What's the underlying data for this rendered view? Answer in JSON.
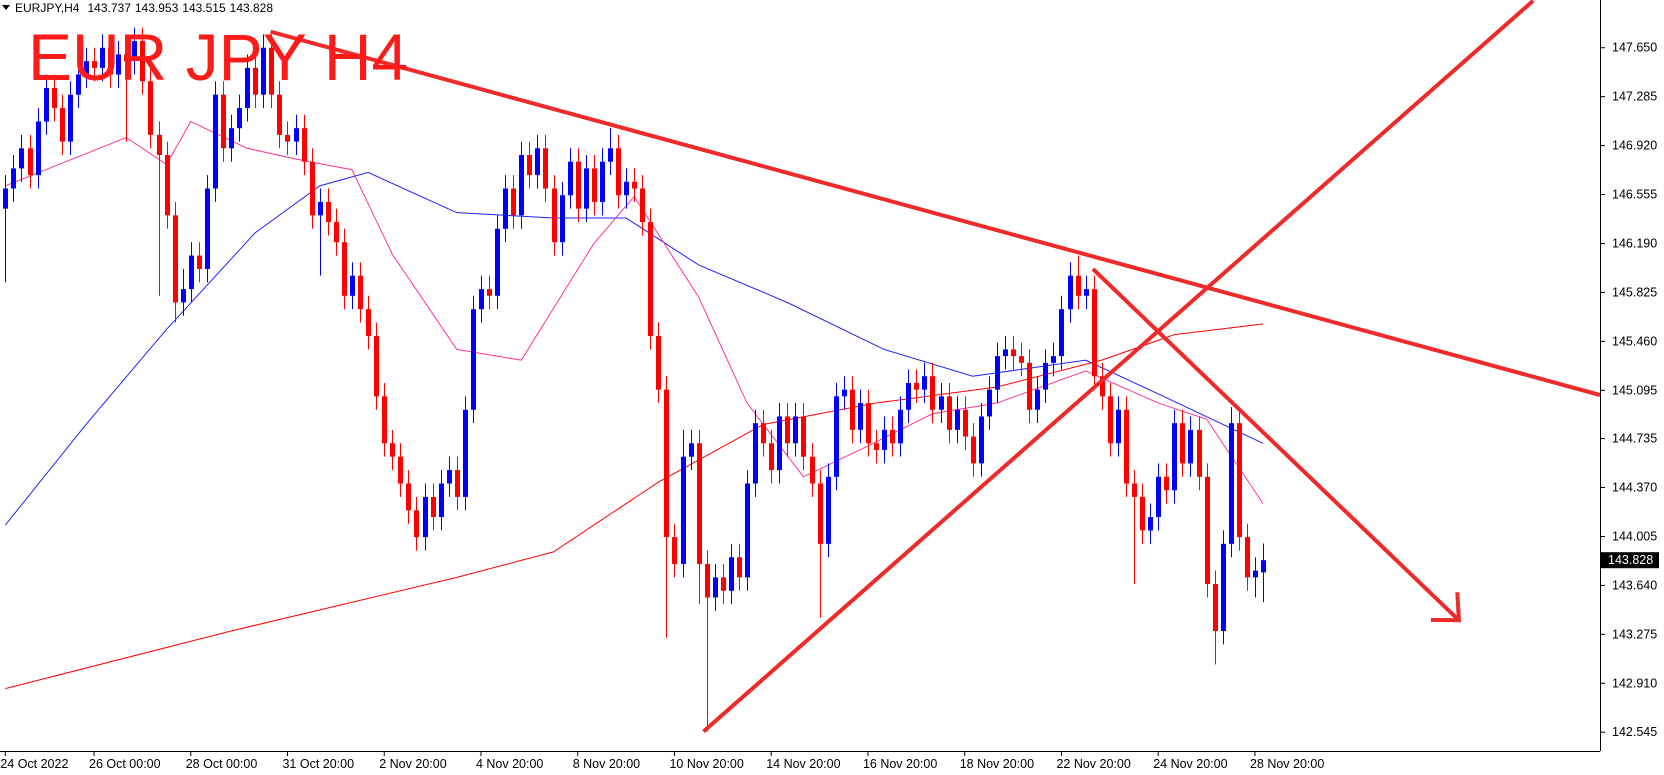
{
  "chart_data": {
    "type": "candlestick",
    "symbol": "EURJPY,H4",
    "title": "EUR JPY H4",
    "up_color": "#0000ff",
    "down_color": "#ff0000",
    "candles": {
      "open": [
        146.45,
        146.6,
        146.75,
        146.9,
        146.7,
        147.1,
        147.35,
        147.2,
        146.95,
        147.3,
        147.45,
        147.55,
        147.5,
        147.65,
        147.45,
        147.6,
        147.55,
        147.7,
        147.4,
        147.0,
        146.85,
        146.4,
        145.75,
        145.85,
        146.1,
        146.0,
        146.6,
        147.3,
        146.9,
        147.05,
        147.2,
        147.5,
        147.3,
        147.65,
        147.3,
        147.0,
        146.95,
        147.05,
        146.8,
        146.4,
        146.5,
        146.35,
        146.2,
        145.8,
        145.95,
        145.7,
        145.5,
        145.05,
        144.7,
        144.6,
        144.4,
        144.2,
        144.0,
        144.3,
        144.15,
        144.4,
        144.5,
        144.3,
        144.95,
        145.7,
        145.85,
        145.8,
        146.3,
        146.6,
        146.4,
        146.85,
        146.7,
        146.9,
        146.6,
        146.2,
        146.55,
        146.8,
        146.45,
        146.75,
        146.5,
        146.8,
        146.9,
        146.55,
        146.65,
        146.6,
        146.35,
        145.5,
        145.1,
        144.0,
        143.8,
        144.6,
        144.7,
        143.8,
        143.55,
        143.7,
        143.6,
        143.85,
        143.7,
        144.4,
        144.85,
        144.7,
        144.5,
        144.9,
        144.7,
        144.9,
        144.6,
        144.4,
        143.95,
        144.45,
        145.05,
        145.1,
        144.8,
        145.0,
        144.7,
        144.65,
        144.8,
        144.7,
        144.95,
        145.15,
        145.1,
        145.2,
        144.95,
        145.05,
        144.8,
        144.95,
        144.75,
        144.55,
        144.9,
        145.1,
        145.35,
        145.4,
        145.35,
        145.3,
        144.95,
        145.1,
        145.3,
        145.35,
        145.7,
        145.95,
        145.8,
        145.85,
        145.2,
        145.05,
        144.7,
        144.95,
        144.4,
        144.3,
        144.05,
        144.15,
        144.45,
        144.35,
        144.85,
        144.55,
        144.8,
        144.45,
        143.65,
        143.3,
        143.95,
        144.85,
        144.0,
        143.7,
        143.737
      ],
      "high": [
        146.7,
        146.85,
        147.0,
        147.0,
        147.2,
        147.45,
        147.45,
        147.3,
        147.4,
        147.55,
        147.65,
        147.65,
        147.75,
        147.75,
        147.7,
        147.7,
        147.8,
        147.8,
        147.5,
        147.1,
        146.95,
        146.5,
        146.0,
        146.2,
        146.2,
        146.7,
        147.4,
        147.4,
        147.15,
        147.3,
        147.6,
        147.6,
        147.75,
        147.75,
        147.4,
        147.1,
        147.15,
        147.15,
        146.9,
        146.6,
        146.6,
        146.45,
        146.3,
        146.05,
        146.05,
        145.8,
        145.6,
        145.15,
        144.8,
        144.7,
        144.5,
        144.3,
        144.4,
        144.4,
        144.5,
        144.6,
        144.6,
        145.05,
        145.8,
        145.95,
        145.95,
        146.4,
        146.7,
        146.7,
        146.95,
        146.95,
        147.0,
        147.0,
        146.7,
        146.65,
        146.9,
        146.9,
        146.85,
        146.85,
        146.9,
        147.05,
        147.0,
        146.75,
        146.75,
        146.7,
        146.45,
        145.6,
        145.2,
        144.1,
        144.8,
        144.8,
        144.8,
        143.9,
        143.8,
        143.8,
        143.95,
        143.95,
        144.5,
        144.95,
        144.95,
        144.8,
        145.0,
        145.0,
        145.0,
        145.0,
        144.7,
        144.5,
        144.55,
        145.15,
        145.2,
        145.2,
        145.1,
        145.1,
        144.8,
        144.9,
        144.9,
        145.05,
        145.25,
        145.25,
        145.3,
        145.3,
        145.15,
        145.15,
        145.05,
        145.05,
        144.85,
        145.0,
        145.2,
        145.45,
        145.5,
        145.5,
        145.45,
        145.4,
        145.2,
        145.4,
        145.45,
        145.8,
        146.05,
        146.1,
        145.95,
        145.95,
        145.3,
        145.15,
        145.05,
        145.05,
        144.5,
        144.4,
        144.25,
        144.55,
        144.55,
        144.95,
        144.95,
        144.9,
        144.9,
        144.55,
        143.75,
        144.05,
        144.97,
        144.95,
        144.1,
        143.85,
        143.953
      ],
      "low": [
        145.9,
        146.5,
        146.65,
        146.6,
        146.6,
        147.0,
        147.1,
        146.85,
        146.85,
        147.2,
        147.35,
        147.4,
        147.4,
        147.35,
        147.35,
        146.95,
        147.45,
        147.3,
        146.9,
        145.8,
        146.3,
        145.6,
        145.65,
        145.75,
        145.9,
        145.9,
        146.5,
        146.8,
        146.8,
        146.95,
        147.1,
        147.2,
        147.2,
        147.2,
        146.9,
        146.85,
        146.85,
        146.7,
        146.3,
        145.95,
        146.25,
        146.1,
        145.7,
        145.7,
        145.6,
        145.4,
        144.95,
        144.6,
        144.5,
        144.3,
        144.1,
        143.9,
        143.9,
        144.05,
        144.05,
        144.3,
        144.2,
        144.2,
        144.85,
        145.6,
        145.7,
        145.7,
        146.2,
        146.3,
        146.3,
        146.6,
        146.6,
        146.5,
        146.1,
        146.1,
        146.45,
        146.35,
        146.35,
        146.4,
        146.4,
        146.7,
        146.45,
        146.45,
        146.5,
        146.25,
        145.4,
        145.0,
        143.25,
        143.7,
        143.7,
        144.5,
        143.5,
        142.55,
        143.45,
        143.5,
        143.5,
        143.6,
        143.6,
        144.3,
        144.6,
        144.4,
        144.4,
        144.6,
        144.6,
        144.5,
        144.3,
        143.4,
        143.85,
        144.35,
        144.95,
        144.7,
        144.7,
        144.6,
        144.55,
        144.55,
        144.6,
        144.6,
        144.85,
        145.0,
        145.0,
        144.85,
        144.85,
        144.7,
        144.7,
        144.65,
        144.45,
        144.45,
        144.8,
        145.0,
        145.25,
        145.25,
        145.2,
        144.85,
        144.85,
        145.0,
        145.2,
        145.25,
        145.6,
        145.7,
        145.7,
        145.1,
        144.95,
        144.6,
        144.6,
        144.3,
        143.65,
        143.95,
        143.95,
        144.05,
        144.25,
        144.25,
        144.45,
        144.45,
        144.35,
        143.55,
        143.05,
        143.2,
        143.85,
        143.9,
        143.6,
        143.55,
        143.515
      ],
      "close": [
        146.6,
        146.75,
        146.9,
        146.7,
        147.1,
        147.35,
        147.2,
        146.95,
        147.3,
        147.45,
        147.55,
        147.5,
        147.65,
        147.45,
        147.6,
        147.55,
        147.7,
        147.4,
        147.0,
        146.85,
        146.4,
        145.75,
        145.85,
        146.1,
        146.0,
        146.6,
        147.3,
        146.9,
        147.05,
        147.2,
        147.5,
        147.3,
        147.65,
        147.3,
        147.0,
        146.95,
        147.05,
        146.8,
        146.4,
        146.5,
        146.35,
        146.2,
        145.8,
        145.95,
        145.7,
        145.5,
        145.05,
        144.7,
        144.6,
        144.4,
        144.2,
        144.0,
        144.3,
        144.15,
        144.4,
        144.5,
        144.3,
        144.95,
        145.7,
        145.85,
        145.8,
        146.3,
        146.6,
        146.4,
        146.85,
        146.7,
        146.9,
        146.6,
        146.2,
        146.55,
        146.8,
        146.45,
        146.75,
        146.5,
        146.8,
        146.9,
        146.55,
        146.65,
        146.6,
        146.35,
        145.5,
        145.1,
        144.0,
        143.8,
        144.6,
        144.7,
        143.8,
        143.55,
        143.7,
        143.6,
        143.85,
        143.7,
        144.4,
        144.85,
        144.7,
        144.5,
        144.9,
        144.7,
        144.9,
        144.6,
        144.4,
        143.95,
        144.45,
        145.05,
        145.1,
        144.8,
        145.0,
        144.7,
        144.65,
        144.8,
        144.7,
        144.95,
        145.15,
        145.1,
        145.2,
        144.95,
        145.05,
        144.8,
        144.95,
        144.75,
        144.55,
        144.9,
        145.1,
        145.35,
        145.4,
        145.35,
        145.3,
        144.95,
        145.1,
        145.3,
        145.35,
        145.7,
        145.95,
        145.8,
        145.85,
        145.2,
        145.05,
        144.7,
        144.95,
        144.4,
        144.3,
        144.05,
        144.15,
        144.45,
        144.35,
        144.85,
        144.55,
        144.8,
        144.45,
        143.65,
        143.3,
        143.95,
        144.85,
        144.0,
        143.7,
        143.75,
        143.828
      ]
    },
    "series": [
      {
        "color": "#ff0000",
        "x": [
          0,
          28,
          56,
          68,
          81,
          94,
          108,
          123,
          136,
          145,
          156
        ],
        "values": [
          142.87,
          143.3,
          143.7,
          143.89,
          144.41,
          144.84,
          145.0,
          145.12,
          145.32,
          145.51,
          145.59
        ]
      },
      {
        "color": "#2020ff",
        "x": [
          0,
          10,
          20,
          31,
          39,
          45,
          56,
          68,
          77,
          86,
          97,
          109,
          120,
          134,
          144,
          156
        ],
        "values": [
          144.09,
          144.84,
          145.55,
          146.27,
          146.62,
          146.72,
          146.42,
          146.38,
          146.38,
          146.03,
          145.75,
          145.4,
          145.2,
          145.32,
          145.04,
          144.7
        ]
      },
      {
        "color": "#ff3399",
        "x": [
          0,
          10,
          15,
          20,
          23,
          30,
          36,
          43,
          48,
          56,
          64,
          73,
          78,
          86,
          92,
          99,
          107,
          115,
          123,
          134,
          143,
          149,
          156
        ],
        "values": [
          146.62,
          146.86,
          146.98,
          146.78,
          147.1,
          146.9,
          146.82,
          146.74,
          146.11,
          145.4,
          145.32,
          146.19,
          146.54,
          145.79,
          145.0,
          144.45,
          144.68,
          144.92,
          145.0,
          145.24,
          145.0,
          144.88,
          144.25
        ]
      }
    ],
    "trendlines": [
      {
        "color": "#ee2a2a",
        "x": [
          32.9,
          197.8
        ],
        "values": [
          147.77,
          145.06
        ]
      },
      {
        "color": "#ee2a2a",
        "x": [
          86.6,
          189.5
        ],
        "values": [
          142.55,
          148.0
        ]
      },
      {
        "color": "#ee2a2a",
        "x": [
          134.9,
          180.3
        ],
        "values": [
          146.0,
          143.38
        ],
        "arrow": true
      }
    ],
    "xlim": [
      -0.66,
      197.8
    ],
    "ylim": [
      142.405,
      148.006
    ],
    "xticks": [
      {
        "value": 0,
        "label": "24 Oct 2022"
      },
      {
        "value": 11,
        "label": "26 Oct 00:00"
      },
      {
        "value": 23,
        "label": "28 Oct 00:00"
      },
      {
        "value": 35,
        "label": "31 Oct 20:00"
      },
      {
        "value": 47,
        "label": "2 Nov 20:00"
      },
      {
        "value": 59,
        "label": "4 Nov 20:00"
      },
      {
        "value": 71,
        "label": "8 Nov 20:00"
      },
      {
        "value": 83,
        "label": "10 Nov 20:00"
      },
      {
        "value": 95,
        "label": "14 Nov 20:00"
      },
      {
        "value": 107,
        "label": "16 Nov 20:00"
      },
      {
        "value": 119,
        "label": "18 Nov 20:00"
      },
      {
        "value": 131,
        "label": "22 Nov 20:00"
      },
      {
        "value": 143,
        "label": "24 Nov 20:00"
      },
      {
        "value": 155,
        "label": "28 Nov 20:00"
      }
    ],
    "yticks": [
      142.545,
      {
        "value": 142.91,
        "label": "142.910"
      },
      143.275,
      {
        "value": 143.64,
        "label": "143.640"
      },
      144.005,
      {
        "value": 144.37,
        "label": "144.370"
      },
      144.735,
      145.095,
      {
        "value": 145.46,
        "label": "145.460"
      },
      145.825,
      {
        "value": 146.19,
        "label": "146.190"
      },
      146.555,
      {
        "value": 146.92,
        "label": "146.920"
      },
      147.285,
      {
        "value": 147.65,
        "label": "147.650"
      }
    ]
  }
}
